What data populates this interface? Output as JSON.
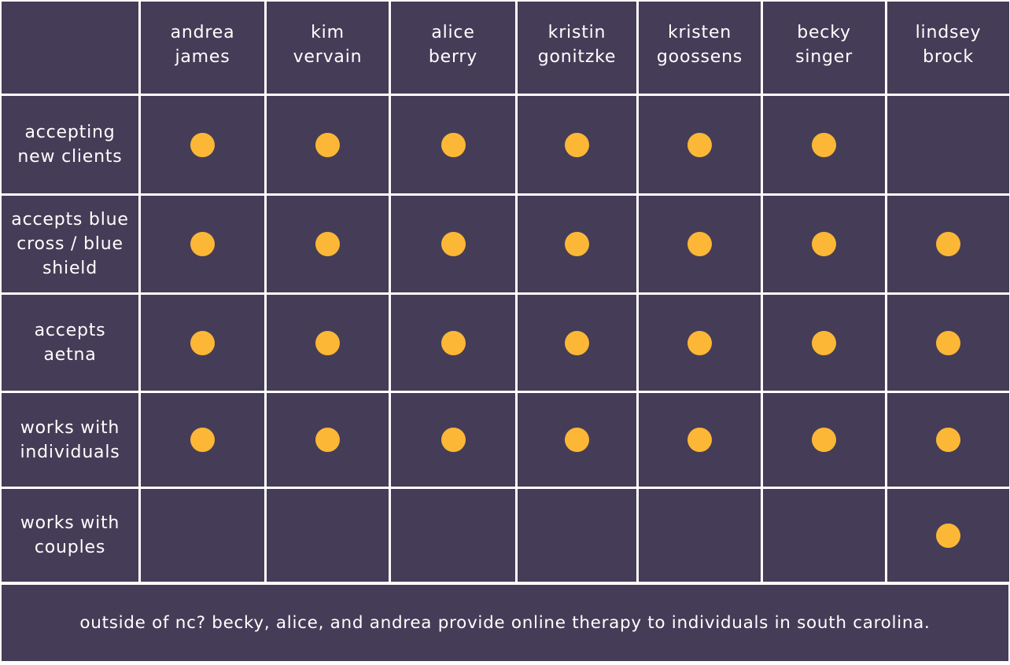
{
  "columns": [
    "andrea\njames",
    "kim\nvervain",
    "alice\nberry",
    "kristin\ngonitzke",
    "kristen\ngoossens",
    "becky\nsinger",
    "lindsey\nbrock"
  ],
  "rows": [
    {
      "label": "accepting new clients",
      "marks": [
        true,
        true,
        true,
        true,
        true,
        true,
        false
      ]
    },
    {
      "label": "accepts blue cross / blue shield",
      "marks": [
        true,
        true,
        true,
        true,
        true,
        true,
        true
      ]
    },
    {
      "label": "accepts aetna",
      "marks": [
        true,
        true,
        true,
        true,
        true,
        true,
        true
      ]
    },
    {
      "label": "works with individuals",
      "marks": [
        true,
        true,
        true,
        true,
        true,
        true,
        true
      ]
    },
    {
      "label": "works with couples",
      "marks": [
        false,
        false,
        false,
        false,
        false,
        false,
        true
      ]
    }
  ],
  "footer": "outside of nc? becky, alice, and andrea provide online therapy to individuals in south carolina.",
  "colors": {
    "panel": "#453d57",
    "dot": "#fdb736",
    "grid_lines": "#ffffff"
  }
}
